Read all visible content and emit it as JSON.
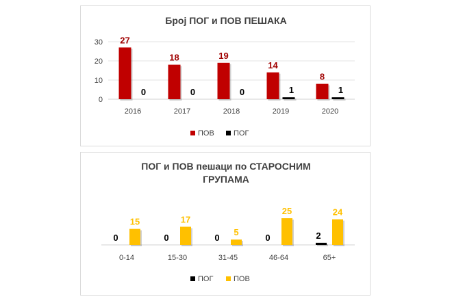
{
  "chart_data": [
    {
      "type": "bar",
      "title": "Број ПОГ и ПОВ ПЕШАКА",
      "categories": [
        "2016",
        "2017",
        "2018",
        "2019",
        "2020"
      ],
      "series": [
        {
          "name": "ПОВ",
          "values": [
            27,
            18,
            19,
            14,
            8
          ],
          "color": "#c00000",
          "label_color": "#a00000"
        },
        {
          "name": "ПОГ",
          "values": [
            0,
            0,
            0,
            1,
            1
          ],
          "color": "#000000",
          "label_color": "#000000"
        }
      ],
      "yticks": [
        0,
        10,
        20,
        30
      ],
      "ylim": [
        0,
        30
      ],
      "grid": true,
      "legend": "bottom",
      "legend_order": [
        0,
        1
      ]
    },
    {
      "type": "bar",
      "title": [
        "ПОГ  и ПОВ пешаци по СТАРОСНИМ",
        "ГРУПАМА"
      ],
      "categories": [
        "0-14",
        "15-30",
        "31-45",
        "46-64",
        "65+"
      ],
      "series": [
        {
          "name": "ПОГ",
          "values": [
            0,
            0,
            0,
            0,
            2
          ],
          "color": "#000000",
          "label_color": "#000000"
        },
        {
          "name": "ПОВ",
          "values": [
            15,
            17,
            5,
            25,
            24
          ],
          "color": "#ffc000",
          "label_color": "#ffc000"
        }
      ],
      "ylim": [
        0,
        25
      ],
      "grid": false,
      "legend": "bottom",
      "legend_order": [
        0,
        1
      ]
    }
  ]
}
